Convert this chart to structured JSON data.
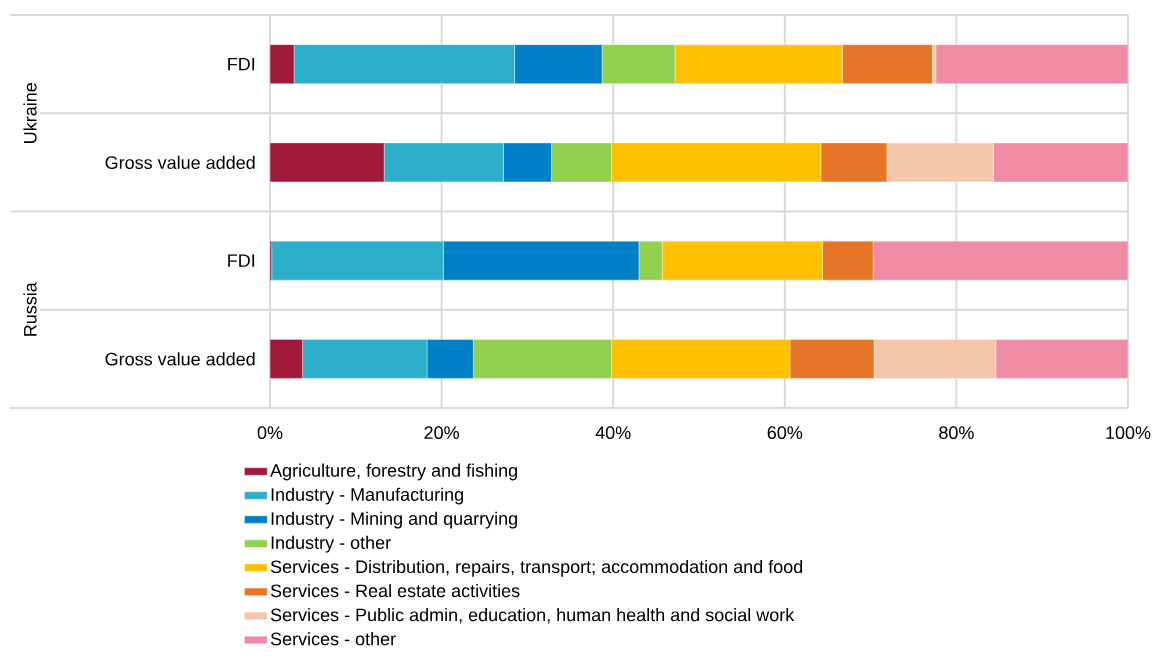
{
  "chart_data": {
    "type": "bar",
    "orientation": "horizontal",
    "stacked": true,
    "categories": [
      "FDI",
      "Gross value added",
      "FDI",
      "Gross value added"
    ],
    "annotations": [
      "Ukraine",
      "Russia"
    ],
    "series": [
      {
        "name": "Agriculture, forestry and fishing",
        "color": "#a2193a",
        "values": [
          2.8,
          13.3,
          0.2,
          3.8
        ]
      },
      {
        "name": "Industry - Manufacturing",
        "color": "#2bafca",
        "values": [
          25.7,
          13.9,
          20.0,
          14.5
        ]
      },
      {
        "name": "Industry - Mining and quarrying",
        "color": "#0080c6",
        "values": [
          10.2,
          5.6,
          22.8,
          5.4
        ]
      },
      {
        "name": "Industry - other",
        "color": "#92d050",
        "values": [
          8.5,
          7.0,
          2.7,
          16.1
        ]
      },
      {
        "name": "Services - Distribution, repairs, transport; accommodation and food",
        "color": "#ffc000",
        "values": [
          19.5,
          24.4,
          18.7,
          20.8
        ]
      },
      {
        "name": "Services - Real estate activities",
        "color": "#e57628",
        "values": [
          10.5,
          7.7,
          5.9,
          9.8
        ]
      },
      {
        "name": "Services - Public admin, education, human health and social work",
        "color": "#f4c7ab",
        "values": [
          0.4,
          12.4,
          0.0,
          14.2
        ]
      },
      {
        "name": "Services - other",
        "color": "#ef8ba5",
        "values": [
          22.4,
          15.7,
          29.7,
          15.4
        ]
      }
    ],
    "xlim": [
      0,
      100
    ],
    "xticks": [
      {
        "value": 0,
        "label": "0%"
      },
      {
        "value": 20,
        "label": "20%"
      },
      {
        "value": 40,
        "label": "40%"
      },
      {
        "value": 60,
        "label": "60%"
      },
      {
        "value": 80,
        "label": "80%"
      },
      {
        "value": 100,
        "label": "100%"
      }
    ],
    "grid": "x",
    "legend": "bottom"
  }
}
